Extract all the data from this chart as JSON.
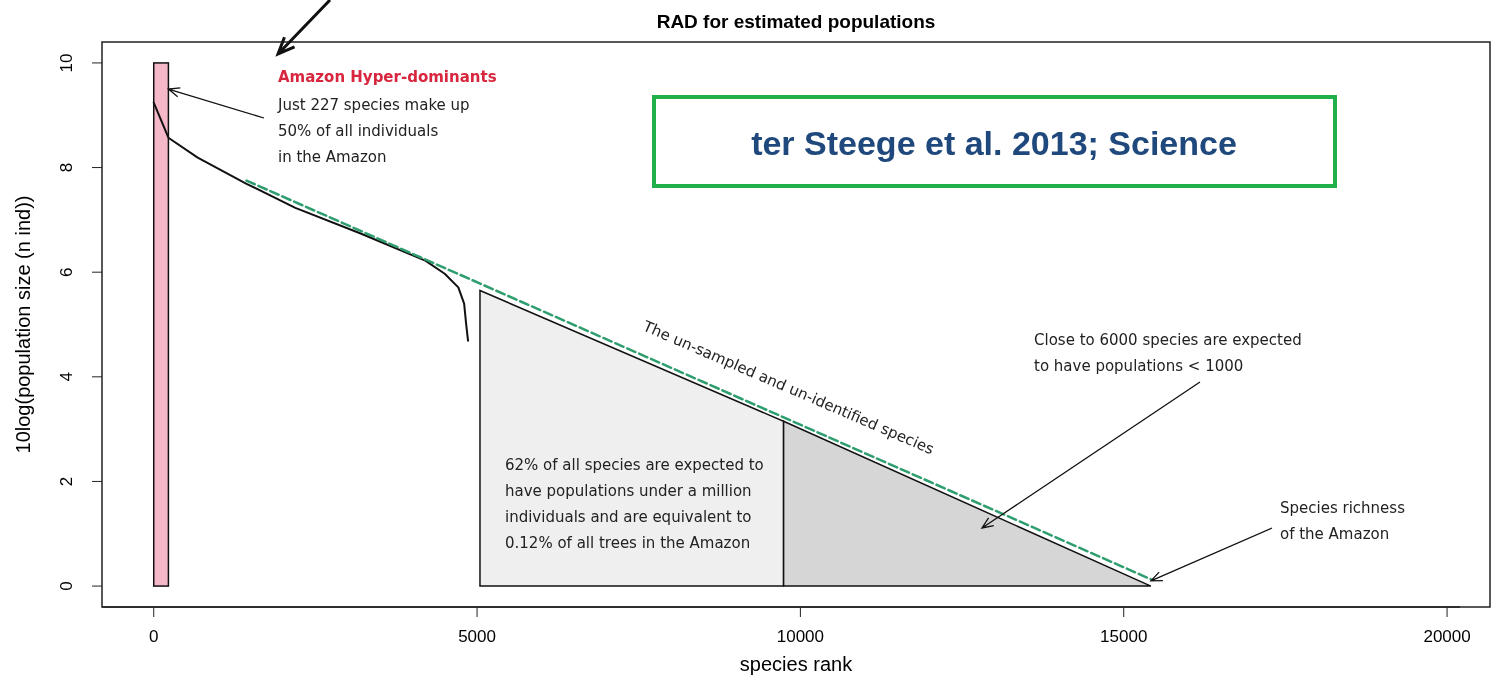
{
  "chart_data": {
    "type": "line",
    "title": "RAD for estimated populations",
    "xlabel": "species rank",
    "ylabel": "10log(population size (n ind))",
    "xlim": [
      -800,
      20200
    ],
    "xticks": [
      0,
      5000,
      10000,
      15000,
      20000
    ],
    "ylim": [
      -0.4,
      10.4
    ],
    "yticks": [
      0,
      2,
      4,
      6,
      8,
      10
    ],
    "grid": false,
    "bands": [
      {
        "axis": "x",
        "from": 0,
        "to": 227,
        "color": "#f4b8c8"
      }
    ],
    "series": [
      {
        "type": "area",
        "color": "#efefef",
        "x": [
          5045,
          9740
        ],
        "values": [
          5.65,
          3.15
        ]
      },
      {
        "type": "area",
        "color": "#d6d6d6",
        "x": [
          9740,
          15420
        ],
        "values": [
          3.15,
          0
        ]
      },
      {
        "color": "#111111",
        "line_style": "solid",
        "x": [
          0,
          227,
          680,
          1435,
          2190,
          3200,
          4200,
          4500,
          4710,
          4800,
          4830,
          4860
        ],
        "values": [
          9.24,
          8.57,
          8.19,
          7.69,
          7.23,
          6.74,
          6.22,
          5.97,
          5.71,
          5.4,
          5.02,
          4.69
        ]
      },
      {
        "color": "#2e9e6e",
        "line_style": "dashed",
        "x": [
          1435,
          15420
        ],
        "values": [
          7.75,
          0.13
        ]
      }
    ],
    "annotations": [
      "Amazon Hyper-dominants",
      {
        "text": "Just 227 species make up 50% of all individuals in the Amazon",
        "x": 227,
        "y": 9.5
      },
      "The un-sampled and un-identified species",
      "62% of all species are expected to have populations under a million individuals and are equivalent to 0.12% of all trees in the Amazon",
      "Close to 6000 species are expected to have populations < 1000",
      {
        "text": "Species richness of the Amazon",
        "x": 15420,
        "y": 0.1
      },
      "ter Steege et al. 2013; Science"
    ]
  }
}
